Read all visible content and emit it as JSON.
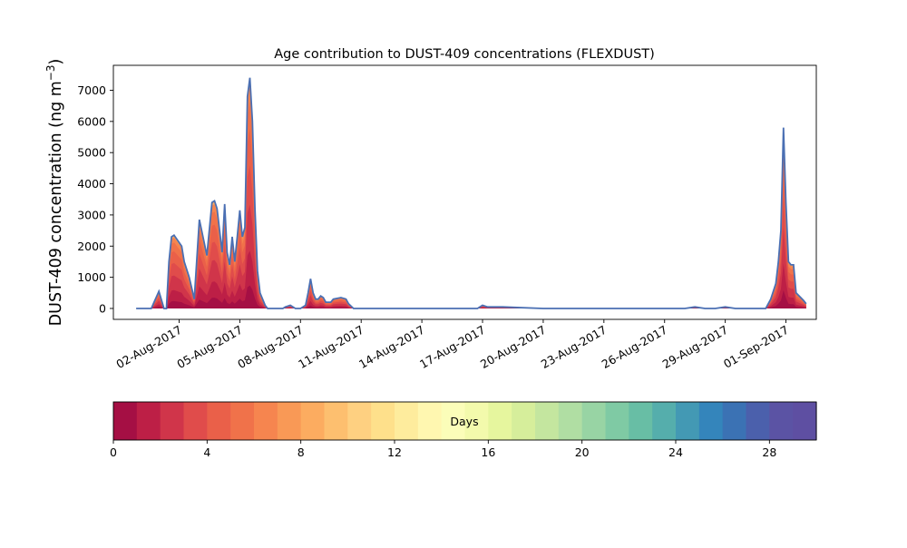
{
  "chart_data": [
    {
      "type": "area",
      "title": "Age contribution to DUST-409 concentrations (FLEXDUST)",
      "ylabel_main": "DUST-409 concentration (ng m",
      "ylabel_sup": "−3",
      "ylabel_close": ")",
      "xlabel": "",
      "ylim": [
        -350,
        7800
      ],
      "yticks": [
        0,
        1000,
        2000,
        3000,
        4000,
        5000,
        6000,
        7000
      ],
      "xlim": [
        "2017-07-29 18:00",
        "2017-09-02 12:00"
      ],
      "xticks": [
        "02-Aug-2017",
        "05-Aug-2017",
        "08-Aug-2017",
        "11-Aug-2017",
        "14-Aug-2017",
        "17-Aug-2017",
        "20-Aug-2017",
        "23-Aug-2017",
        "26-Aug-2017",
        "29-Aug-2017",
        "01-Sep-2017"
      ],
      "grid": false,
      "stacked_by": "age (days)",
      "total_outline_color": "#4a6fb3",
      "total": {
        "x": [
          "2017-07-30 21:00",
          "2017-07-31 15:00",
          "2017-08-01 00:00",
          "2017-08-01 06:00",
          "2017-08-01 09:00",
          "2017-08-01 12:00",
          "2017-08-01 15:00",
          "2017-08-01 18:00",
          "2017-08-02 03:00",
          "2017-08-02 06:00",
          "2017-08-02 12:00",
          "2017-08-02 18:00",
          "2017-08-03 00:00",
          "2017-08-03 09:00",
          "2017-08-03 15:00",
          "2017-08-03 18:00",
          "2017-08-03 21:00",
          "2017-08-04 03:00",
          "2017-08-04 06:00",
          "2017-08-04 09:00",
          "2017-08-04 12:00",
          "2017-08-04 15:00",
          "2017-08-04 18:00",
          "2017-08-04 21:00",
          "2017-08-05 00:00",
          "2017-08-05 03:00",
          "2017-08-05 06:00",
          "2017-08-05 09:00",
          "2017-08-05 12:00",
          "2017-08-05 15:00",
          "2017-08-05 18:00",
          "2017-08-05 21:00",
          "2017-08-06 00:00",
          "2017-08-06 06:00",
          "2017-08-06 09:00",
          "2017-08-06 15:00",
          "2017-08-06 21:00",
          "2017-08-07 03:00",
          "2017-08-07 06:00",
          "2017-08-07 12:00",
          "2017-08-07 18:00",
          "2017-08-08 00:00",
          "2017-08-08 06:00",
          "2017-08-08 09:00",
          "2017-08-08 12:00",
          "2017-08-08 15:00",
          "2017-08-08 18:00",
          "2017-08-08 21:00",
          "2017-08-09 00:00",
          "2017-08-09 03:00",
          "2017-08-09 06:00",
          "2017-08-09 12:00",
          "2017-08-09 15:00",
          "2017-08-10 00:00",
          "2017-08-10 06:00",
          "2017-08-10 09:00",
          "2017-08-10 15:00",
          "2017-08-10 21:00",
          "2017-08-11 03:00",
          "2017-08-11 12:00",
          "2017-08-12 00:00",
          "2017-08-13 00:00",
          "2017-08-15 00:00",
          "2017-08-16 18:00",
          "2017-08-17 00:00",
          "2017-08-17 06:00",
          "2017-08-17 12:00",
          "2017-08-18 00:00",
          "2017-08-20 00:00",
          "2017-08-22 00:00",
          "2017-08-24 00:00",
          "2017-08-25 00:00",
          "2017-08-26 00:00",
          "2017-08-27 00:00",
          "2017-08-27 12:00",
          "2017-08-28 00:00",
          "2017-08-28 12:00",
          "2017-08-29 00:00",
          "2017-08-29 12:00",
          "2017-08-30 12:00",
          "2017-08-31 00:00",
          "2017-08-31 06:00",
          "2017-08-31 12:00",
          "2017-08-31 15:00",
          "2017-08-31 18:00",
          "2017-08-31 21:00",
          "2017-09-01 00:00",
          "2017-09-01 03:00",
          "2017-09-01 06:00",
          "2017-09-01 09:00",
          "2017-09-01 12:00",
          "2017-09-01 21:00",
          "2017-09-02 00:00"
        ],
        "y": [
          0,
          0,
          550,
          0,
          -5,
          1500,
          2300,
          2350,
          2000,
          1500,
          1000,
          300,
          2850,
          1700,
          3400,
          3450,
          3200,
          1800,
          3350,
          1800,
          1400,
          2300,
          1500,
          2300,
          3150,
          2300,
          2600,
          6800,
          7400,
          6000,
          3200,
          1200,
          500,
          100,
          0,
          0,
          0,
          0,
          50,
          100,
          0,
          0,
          100,
          500,
          950,
          500,
          300,
          300,
          400,
          350,
          200,
          200,
          300,
          350,
          300,
          150,
          0,
          0,
          0,
          0,
          0,
          0,
          0,
          0,
          100,
          50,
          50,
          50,
          0,
          0,
          0,
          0,
          0,
          0,
          50,
          0,
          0,
          50,
          0,
          0,
          0,
          300,
          800,
          1500,
          2500,
          5800,
          3400,
          1500,
          1400,
          1400,
          500,
          250,
          150
        ]
      },
      "age_colorbar": {
        "label": "Days",
        "min": 0,
        "max": 30,
        "ticks": [
          0,
          4,
          8,
          12,
          16,
          20,
          24,
          28
        ],
        "colors": [
          "#a50f44",
          "#bd1f46",
          "#d0354a",
          "#e04c4b",
          "#ea6049",
          "#f0724a",
          "#f6854f",
          "#f99956",
          "#fcac60",
          "#fdbf6f",
          "#fed081",
          "#fee08b",
          "#feec9d",
          "#fff7b0",
          "#fbfdb9",
          "#f3faac",
          "#e6f69e",
          "#d6ee9b",
          "#c4e69f",
          "#b0dea3",
          "#98d4a4",
          "#7fcaa4",
          "#68bea5",
          "#55aeac",
          "#4399b4",
          "#3485bb",
          "#3b72b4",
          "#4b60ac",
          "#5b53a4",
          "#5e4fa2"
        ]
      }
    }
  ]
}
